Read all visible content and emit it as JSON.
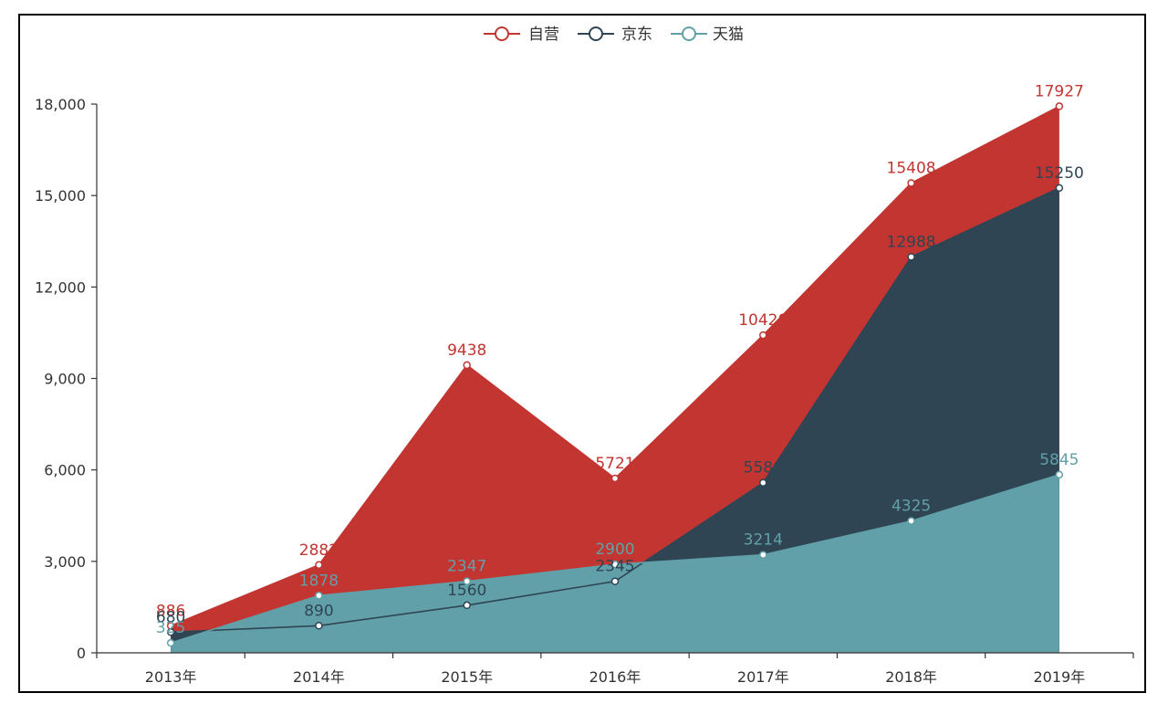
{
  "chart_data": {
    "type": "area",
    "categories": [
      "2013年",
      "2014年",
      "2015年",
      "2016年",
      "2017年",
      "2018年",
      "2019年"
    ],
    "series": [
      {
        "name": "自营",
        "values": [
          886,
          2882,
          9438,
          5721,
          10420,
          15408,
          17927
        ],
        "color": "#c23531"
      },
      {
        "name": "京东",
        "values": [
          680,
          890,
          1560,
          2345,
          5580,
          12988,
          15250
        ],
        "color": "#2f4554"
      },
      {
        "name": "天猫",
        "values": [
          325,
          1878,
          2347,
          2900,
          3214,
          4325,
          5845
        ],
        "color": "#61a0a8"
      }
    ],
    "yticks": [
      "0",
      "3,000",
      "6,000",
      "9,000",
      "12,000",
      "15,000",
      "18,000"
    ],
    "ylim": [
      0,
      18000
    ],
    "legend_position": "top-center",
    "title": "",
    "xlabel": "",
    "ylabel": ""
  }
}
